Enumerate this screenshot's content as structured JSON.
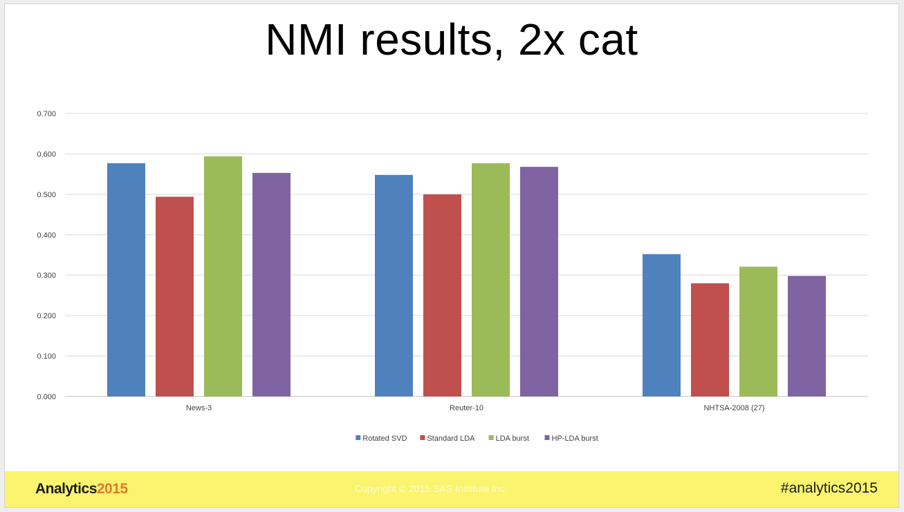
{
  "slide": {
    "title": "NMI results, 2x cat"
  },
  "chart_data": {
    "type": "bar",
    "categories": [
      "News-3",
      "Reuter-10",
      "NHTSA-2008 (27)"
    ],
    "series": [
      {
        "name": "Rotated SVD",
        "values": [
          0.577,
          0.548,
          0.352
        ],
        "color": "#4f81bd"
      },
      {
        "name": "Standard LDA",
        "values": [
          0.494,
          0.5,
          0.28
        ],
        "color": "#c0504d"
      },
      {
        "name": "LDA burst",
        "values": [
          0.594,
          0.577,
          0.321
        ],
        "color": "#9bbb59"
      },
      {
        "name": "HP-LDA burst",
        "values": [
          0.553,
          0.568,
          0.298
        ],
        "color": "#8064a2"
      }
    ],
    "y_ticks": [
      "0.000",
      "0.100",
      "0.200",
      "0.300",
      "0.400",
      "0.500",
      "0.600",
      "0.700"
    ],
    "ylim": [
      0,
      0.7
    ],
    "grid": true,
    "legend": "bottom-center"
  },
  "footer": {
    "brand_text": "Analytics",
    "brand_year": "2015",
    "copyright": "Copyright © 2015 SAS Institute Inc.",
    "hashtag": "#analytics2015",
    "background": "#fbf46f"
  }
}
